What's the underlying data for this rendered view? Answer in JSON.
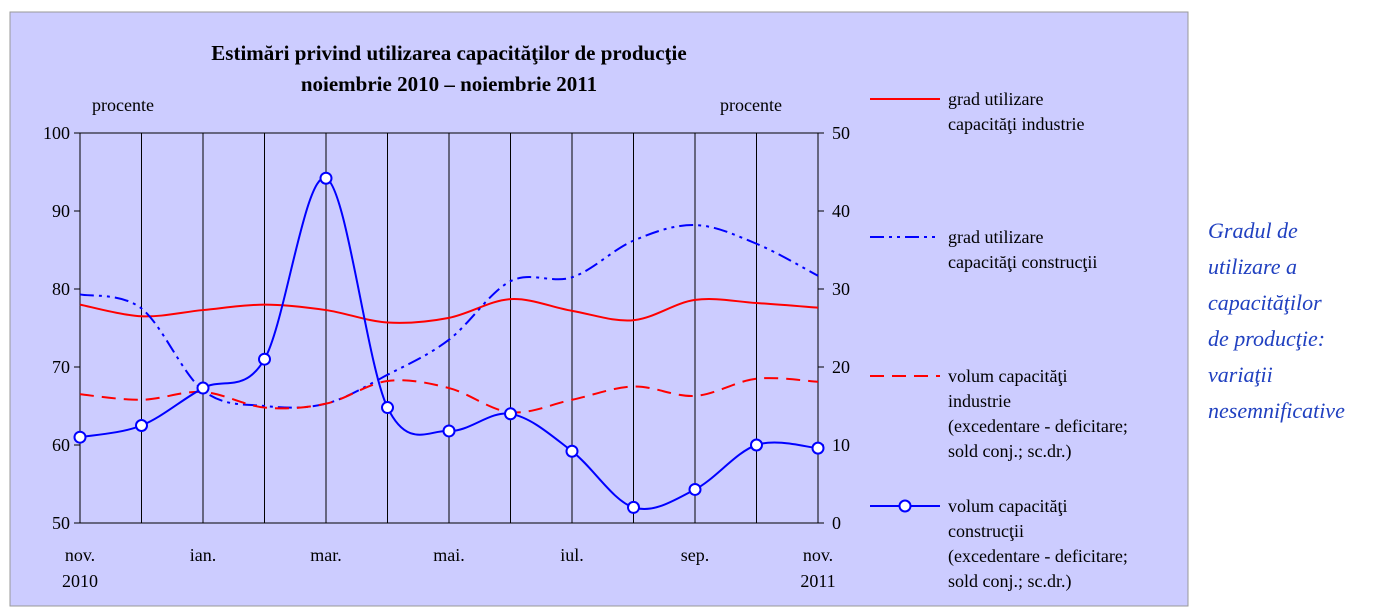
{
  "chart_data": {
    "type": "line",
    "title": "Estimări privind utilizarea capacităţilor de producţie",
    "subtitle": "noiembrie 2010 – noiembrie 2011",
    "y_label": "procente",
    "y2_label": "procente",
    "categories": [
      "nov.\n2010",
      null,
      "ian.",
      null,
      "mar.",
      null,
      "mai.",
      null,
      "iul.",
      null,
      "sep.",
      null,
      "nov.\n2011"
    ],
    "ylim": [
      50,
      100
    ],
    "yticks": [
      50,
      60,
      70,
      80,
      90,
      100
    ],
    "y2lim": [
      0,
      50
    ],
    "y2ticks": [
      0,
      10,
      20,
      30,
      40,
      50
    ],
    "series": [
      {
        "name": "grad utilizare\ncapacităţi industrie",
        "color": "#ff0000",
        "style": "solid",
        "values": [
          78,
          76.5,
          77.3,
          78,
          77.3,
          75.7,
          76.3,
          78.7,
          77.2,
          76,
          78.6,
          78.2,
          77.6
        ]
      },
      {
        "name": "grad utilizare\ncapacităţi construcţii",
        "color": "#0000ff",
        "style": "dash-dot-dot",
        "values": [
          79.3,
          77.5,
          67,
          65,
          65.3,
          69,
          73.5,
          81,
          81.5,
          86.2,
          88.2,
          85.8,
          81.7
        ]
      },
      {
        "name": "volum capacităţi\nindustrie\n(excedentare - deficitare;\nsold conj.; sc.dr.)",
        "color": "#ff0000",
        "style": "dashed",
        "axis": "y2",
        "values": [
          16.5,
          15.8,
          16.8,
          14.8,
          15.3,
          18.2,
          17.3,
          14.2,
          15.8,
          17.5,
          16.3,
          18.5,
          18.1
        ]
      },
      {
        "name": "volum capacităţi\nconstrucţii\n(excedentare - deficitare;\nsold conj.; sc.dr.)",
        "color": "#0000ff",
        "style": "solid-markers",
        "axis": "y2",
        "values": [
          11,
          12.5,
          17.3,
          21,
          44.2,
          14.8,
          11.8,
          14,
          9.2,
          2,
          4.3,
          10,
          9.6
        ]
      }
    ],
    "note": "Gradul de\nutilizare a\ncapacităţilor\nde producţie:\nvariaţii\nnesemnificative"
  }
}
